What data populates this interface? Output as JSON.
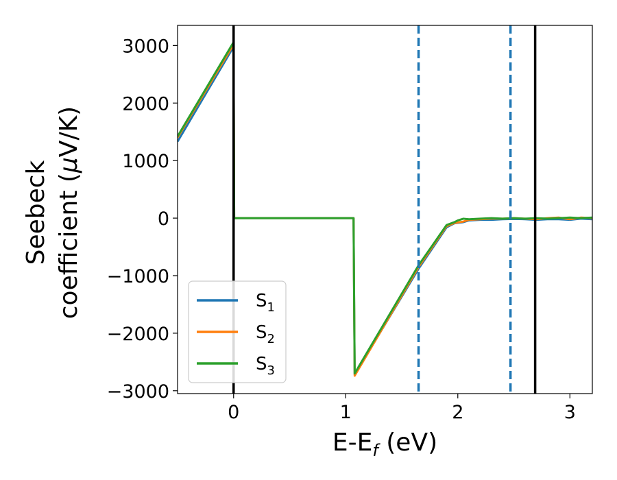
{
  "chart_data": {
    "type": "line",
    "xlabel": "E-E",
    "xlabel_sub": "f",
    "xlabel_unit": " (eV)",
    "ylabel_line1": "Seebeck",
    "ylabel_line2": "coefficient  (",
    "ylabel_mu": "μ",
    "ylabel_unit": "V/K)",
    "xlim": [
      -0.5,
      3.2
    ],
    "ylim": [
      -3050,
      3350
    ],
    "xticks": [
      0,
      1,
      2,
      3
    ],
    "xtick_labels": [
      "0",
      "1",
      "2",
      "3"
    ],
    "yticks": [
      -3000,
      -2000,
      -1000,
      0,
      1000,
      2000,
      3000
    ],
    "ytick_labels": [
      "−3000",
      "−2000",
      "−1000",
      "0",
      "1000",
      "2000",
      "3000"
    ],
    "legend_position": "lower-left",
    "series": [
      {
        "name": "S",
        "sub": "1",
        "color": "#1f77b4",
        "points": [
          [
            -0.5,
            1330
          ],
          [
            0,
            2980
          ],
          [
            0.005,
            0
          ],
          [
            1.07,
            0
          ],
          [
            1.08,
            -2720
          ],
          [
            1.65,
            -880
          ],
          [
            1.9,
            -160
          ],
          [
            1.97,
            -90
          ],
          [
            2.05,
            -70
          ],
          [
            2.1,
            -40
          ],
          [
            2.2,
            -30
          ],
          [
            2.3,
            -30
          ],
          [
            2.4,
            -20
          ],
          [
            2.5,
            -15
          ],
          [
            2.6,
            -20
          ],
          [
            2.7,
            -30
          ],
          [
            2.8,
            -20
          ],
          [
            2.9,
            -20
          ],
          [
            3.0,
            -30
          ],
          [
            3.1,
            -10
          ],
          [
            3.2,
            -20
          ]
        ]
      },
      {
        "name": "S",
        "sub": "2",
        "color": "#ff7f0e",
        "points": [
          [
            -0.5,
            1400
          ],
          [
            0,
            3020
          ],
          [
            0.005,
            0
          ],
          [
            1.07,
            0
          ],
          [
            1.08,
            -2740
          ],
          [
            1.65,
            -850
          ],
          [
            1.9,
            -140
          ],
          [
            1.97,
            -85
          ],
          [
            2.05,
            -60
          ],
          [
            2.1,
            -30
          ],
          [
            2.2,
            -20
          ],
          [
            2.3,
            -10
          ],
          [
            2.4,
            -10
          ],
          [
            2.5,
            0
          ],
          [
            2.6,
            -10
          ],
          [
            2.7,
            -20
          ],
          [
            2.8,
            0
          ],
          [
            2.9,
            10
          ],
          [
            3.0,
            -20
          ],
          [
            3.1,
            10
          ],
          [
            3.2,
            0
          ]
        ]
      },
      {
        "name": "S",
        "sub": "3",
        "color": "#2ca02c",
        "points": [
          [
            -0.5,
            1420
          ],
          [
            0,
            3060
          ],
          [
            0.005,
            0
          ],
          [
            1.07,
            0
          ],
          [
            1.08,
            -2700
          ],
          [
            1.65,
            -820
          ],
          [
            1.9,
            -120
          ],
          [
            1.97,
            -70
          ],
          [
            2.0,
            -40
          ],
          [
            2.05,
            -10
          ],
          [
            2.1,
            -20
          ],
          [
            2.2,
            -10
          ],
          [
            2.3,
            0
          ],
          [
            2.4,
            -10
          ],
          [
            2.5,
            0
          ],
          [
            2.6,
            -10
          ],
          [
            2.7,
            0
          ],
          [
            2.8,
            -10
          ],
          [
            2.9,
            0
          ],
          [
            3.0,
            10
          ],
          [
            3.1,
            0
          ],
          [
            3.2,
            10
          ]
        ]
      }
    ],
    "vlines": [
      {
        "x": 0,
        "style": "solid",
        "color": "#000000"
      },
      {
        "x": 1.65,
        "style": "dashed",
        "color": "#1f77b4"
      },
      {
        "x": 2.47,
        "style": "dashed",
        "color": "#1f77b4"
      },
      {
        "x": 2.69,
        "style": "solid",
        "color": "#000000"
      }
    ]
  }
}
